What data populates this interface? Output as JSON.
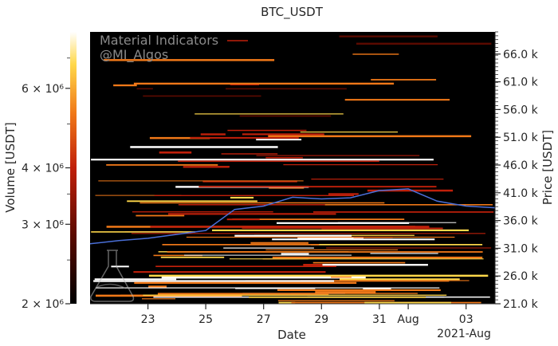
{
  "chart_data": {
    "type": "heatmap",
    "title": "BTC_USDT",
    "xlabel": "Date",
    "ylabel_right": "Price [USDT]",
    "colorbar_label": "Volume [USDT]",
    "x_ticks": [
      "23",
      "25",
      "27",
      "29",
      "31",
      "Aug",
      "03"
    ],
    "x_offset_label": "2021-Aug",
    "y_ticks": [
      "21.0 k",
      "26.0 k",
      "31.0 k",
      "36.0 k",
      "41.0 k",
      "46.0 k",
      "51.0 k",
      "56.0 k",
      "61.0 k",
      "66.0 k"
    ],
    "ylim": [
      21000,
      70000
    ],
    "colorbar_ticks": [
      "2 × 10⁶",
      "3 × 10⁶",
      "4 × 10⁶",
      "6 × 10⁶"
    ],
    "colorbar_range": [
      2000000,
      8000000
    ],
    "colorbar_scale": "log",
    "colormap": [
      "#000000",
      "#5a0a00",
      "#c0200a",
      "#f07818",
      "#ffd84a",
      "#ffffff"
    ],
    "price_series": {
      "name": "Price",
      "color": "#4a6fd8",
      "points": [
        [
          "2021-07-21",
          31800
        ],
        [
          "2021-07-22",
          32400
        ],
        [
          "2021-07-23",
          32800
        ],
        [
          "2021-07-24",
          33500
        ],
        [
          "2021-07-25",
          34200
        ],
        [
          "2021-07-26",
          38000
        ],
        [
          "2021-07-27",
          38600
        ],
        [
          "2021-07-28",
          40200
        ],
        [
          "2021-07-29",
          39900
        ],
        [
          "2021-07-30",
          40100
        ],
        [
          "2021-07-31",
          41400
        ],
        [
          "2021-08-01",
          41700
        ],
        [
          "2021-08-02",
          39500
        ],
        [
          "2021-08-03",
          38600
        ],
        [
          "2021-08-04",
          38300
        ]
      ]
    },
    "watermark": [
      "Material Indicators",
      "@MI_Algos"
    ]
  }
}
